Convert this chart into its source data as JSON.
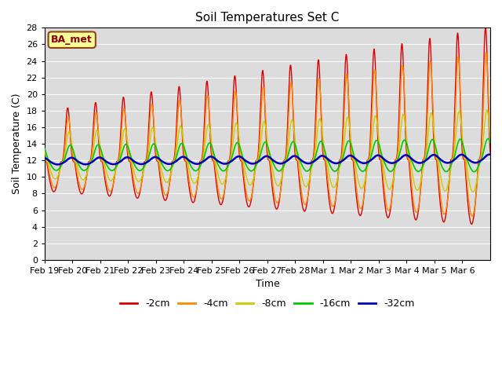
{
  "title": "Soil Temperatures Set C",
  "xlabel": "Time",
  "ylabel": "Soil Temperature (C)",
  "annotation": "BA_met",
  "ylim": [
    0,
    28
  ],
  "yticks": [
    0,
    2,
    4,
    6,
    8,
    10,
    12,
    14,
    16,
    18,
    20,
    22,
    24,
    26,
    28
  ],
  "series_colors": [
    "#dd0000",
    "#ff8800",
    "#cccc00",
    "#00cc00",
    "#0000bb"
  ],
  "series_labels": [
    "-2cm",
    "-4cm",
    "-8cm",
    "-16cm",
    "-32cm"
  ],
  "series_linewidths": [
    1.0,
    1.0,
    1.0,
    1.2,
    1.8
  ],
  "bg_color": "#dcdcdc",
  "tick_labels": [
    "Feb 19",
    "Feb 20",
    "Feb 21",
    "Feb 22",
    "Feb 23",
    "Feb 24",
    "Feb 25",
    "Feb 26",
    "Feb 27",
    "Feb 28",
    "Mar 1",
    "Mar 2",
    "Mar 3",
    "Mar 4",
    "Mar 5",
    "Mar 6"
  ],
  "n_days": 16,
  "pts_per_day": 144
}
